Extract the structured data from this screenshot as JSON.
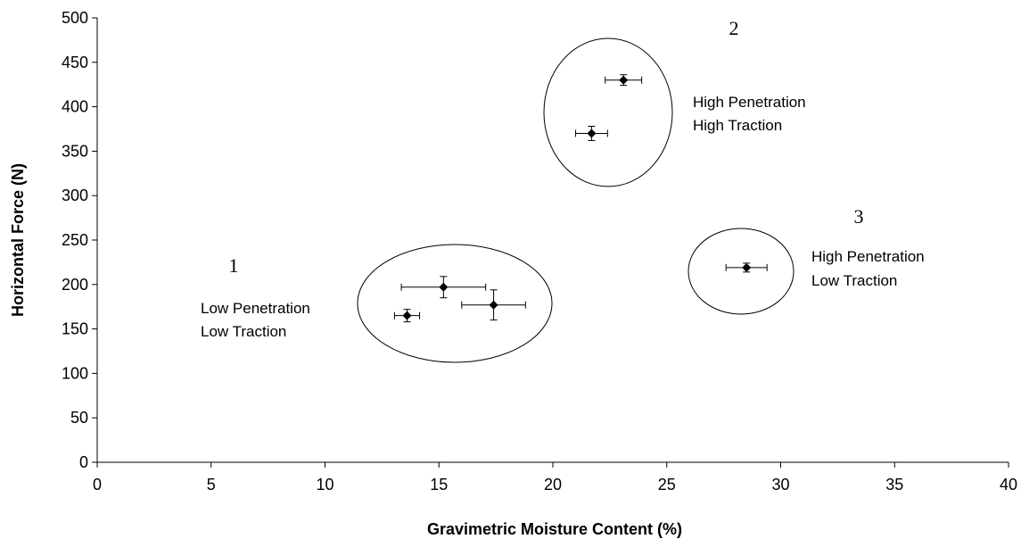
{
  "chart_data": {
    "type": "scatter",
    "title": "",
    "xlabel": "Gravimetric Moisture Content (%)",
    "ylabel": "Horizontal Force (N)",
    "xlim": [
      0,
      40
    ],
    "ylim": [
      0,
      500
    ],
    "x_ticks": [
      0,
      5,
      10,
      15,
      20,
      25,
      30,
      35,
      40
    ],
    "y_ticks": [
      0,
      50,
      100,
      150,
      200,
      250,
      300,
      350,
      400,
      450,
      500
    ],
    "grid": false,
    "legend": "none",
    "marker_color": "#000000",
    "points": [
      {
        "x": 13.6,
        "y": 165,
        "x_err": 0.55,
        "y_err": 7
      },
      {
        "x": 15.2,
        "y": 197,
        "x_err": 1.85,
        "y_err": 12
      },
      {
        "x": 17.4,
        "y": 177,
        "x_err": 1.4,
        "y_err": 17
      },
      {
        "x": 21.7,
        "y": 370,
        "x_err": 0.7,
        "y_err": 8
      },
      {
        "x": 23.1,
        "y": 430,
        "x_err": 0.8,
        "y_err": 6
      },
      {
        "x": 28.5,
        "y": 219,
        "x_err": 0.9,
        "y_err": 5
      }
    ],
    "annotations": [
      {
        "number": "1",
        "lines": [
          "Low Penetration",
          "Low Traction"
        ]
      },
      {
        "number": "2",
        "lines": [
          "High Penetration",
          "High Traction"
        ]
      },
      {
        "number": "3",
        "lines": [
          "High Penetration",
          "Low Traction"
        ]
      }
    ]
  }
}
